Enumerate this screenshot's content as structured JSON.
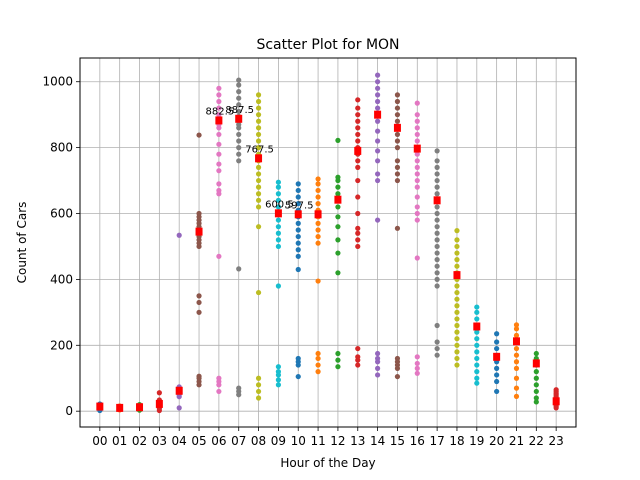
{
  "chart_data": {
    "type": "scatter",
    "title": "Scatter Plot for MON",
    "xlabel": "Hour of the Day",
    "ylabel": "Count of Cars",
    "categories": [
      "00",
      "01",
      "02",
      "03",
      "04",
      "05",
      "06",
      "07",
      "08",
      "09",
      "10",
      "11",
      "12",
      "13",
      "14",
      "15",
      "16",
      "17",
      "18",
      "19",
      "20",
      "21",
      "22",
      "23"
    ],
    "ylim": [
      -48,
      1072
    ],
    "yticks": [
      0,
      200,
      400,
      600,
      800,
      1000
    ],
    "grid": true,
    "colors": [
      "#1f77b4",
      "#ff7f0e",
      "#2ca02c",
      "#d62728",
      "#9467bd",
      "#8c564b",
      "#e377c2",
      "#7f7f7f",
      "#bcbd22",
      "#17becf"
    ],
    "median_color": "#ff0000",
    "series": [
      {
        "hour": "00",
        "points": [
          2,
          6,
          10,
          14,
          18,
          22
        ],
        "median": 14
      },
      {
        "hour": "01",
        "points": [
          4,
          8,
          12,
          16
        ],
        "median": 10
      },
      {
        "hour": "02",
        "points": [
          3,
          7,
          11,
          15,
          20
        ],
        "median": 12
      },
      {
        "hour": "03",
        "points": [
          2,
          8,
          14,
          20,
          28,
          34,
          56
        ],
        "median": 22
      },
      {
        "hour": "04",
        "points": [
          10,
          44,
          50,
          56,
          62,
          68,
          74,
          534
        ],
        "median": 62
      },
      {
        "hour": "05",
        "points": [
          80,
          90,
          100,
          106,
          300,
          330,
          350,
          500,
          510,
          520,
          530,
          540,
          550,
          560,
          570,
          580,
          590,
          600,
          838
        ],
        "median": 545
      },
      {
        "hour": "06",
        "points": [
          60,
          80,
          90,
          100,
          470,
          660,
          670,
          690,
          730,
          750,
          780,
          810,
          840,
          860,
          870,
          880,
          890,
          900,
          920,
          940,
          960,
          980
        ],
        "median": 882.5
      },
      {
        "hour": "07",
        "points": [
          50,
          60,
          70,
          432,
          760,
          780,
          800,
          820,
          840,
          860,
          870,
          880,
          887,
          895,
          910,
          930,
          950,
          970,
          990,
          1005
        ],
        "median": 887.5
      },
      {
        "hour": "08",
        "points": [
          40,
          60,
          80,
          100,
          360,
          560,
          620,
          640,
          660,
          680,
          700,
          720,
          740,
          760,
          780,
          800,
          820,
          840,
          860,
          880,
          900,
          920,
          940,
          960
        ],
        "median": 767.5
      },
      {
        "hour": "09",
        "points": [
          80,
          95,
          110,
          120,
          135,
          380,
          500,
          520,
          540,
          560,
          580,
          600,
          620,
          640,
          660,
          680,
          695
        ],
        "median": 600.5
      },
      {
        "hour": "10",
        "points": [
          105,
          140,
          150,
          160,
          430,
          470,
          490,
          510,
          530,
          550,
          570,
          590,
          610,
          630,
          650,
          670,
          690
        ],
        "median": 597.5
      },
      {
        "hour": "11",
        "points": [
          120,
          140,
          160,
          175,
          395,
          510,
          530,
          550,
          570,
          590,
          610,
          630,
          650,
          670,
          690,
          705
        ],
        "median": 597.5
      },
      {
        "hour": "12",
        "points": [
          135,
          155,
          175,
          420,
          480,
          520,
          560,
          590,
          620,
          640,
          660,
          680,
          700,
          710,
          822
        ],
        "median": 642
      },
      {
        "hour": "13",
        "points": [
          140,
          155,
          165,
          190,
          500,
          520,
          540,
          555,
          600,
          650,
          700,
          740,
          760,
          780,
          800,
          820,
          840,
          860,
          880,
          900,
          920,
          945
        ],
        "median": 790
      },
      {
        "hour": "14",
        "points": [
          110,
          130,
          150,
          160,
          175,
          580,
          700,
          720,
          760,
          790,
          820,
          850,
          880,
          900,
          920,
          940,
          960,
          980,
          1000,
          1020
        ],
        "median": 900
      },
      {
        "hour": "15",
        "points": [
          105,
          130,
          140,
          150,
          160,
          555,
          700,
          720,
          740,
          760,
          800,
          820,
          840,
          860,
          880,
          900,
          920,
          940,
          960
        ],
        "median": 860
      },
      {
        "hour": "16",
        "points": [
          115,
          130,
          145,
          165,
          465,
          580,
          600,
          620,
          650,
          680,
          700,
          720,
          740,
          760,
          780,
          800,
          820,
          840,
          860,
          880,
          900,
          935
        ],
        "median": 797
      },
      {
        "hour": "17",
        "points": [
          170,
          190,
          210,
          260,
          380,
          400,
          420,
          440,
          460,
          480,
          500,
          520,
          540,
          560,
          580,
          600,
          620,
          640,
          660,
          680,
          700,
          720,
          740,
          760,
          790
        ],
        "median": 640
      },
      {
        "hour": "18",
        "points": [
          140,
          160,
          180,
          200,
          220,
          240,
          260,
          280,
          300,
          320,
          340,
          360,
          380,
          400,
          420,
          440,
          460,
          480,
          500,
          520,
          548
        ],
        "median": 413
      },
      {
        "hour": "19",
        "points": [
          85,
          100,
          120,
          140,
          160,
          180,
          200,
          220,
          240,
          260,
          280,
          300,
          316
        ],
        "median": 257
      },
      {
        "hour": "20",
        "points": [
          60,
          90,
          110,
          130,
          150,
          170,
          190,
          210,
          235
        ],
        "median": 165
      },
      {
        "hour": "21",
        "points": [
          45,
          70,
          100,
          130,
          150,
          170,
          190,
          210,
          230,
          250,
          262
        ],
        "median": 212
      },
      {
        "hour": "22",
        "points": [
          28,
          40,
          60,
          80,
          100,
          120,
          140,
          160,
          175
        ],
        "median": 145
      },
      {
        "hour": "23",
        "points": [
          10,
          15,
          20,
          25,
          30,
          35,
          40,
          45,
          50,
          55,
          60,
          65
        ],
        "median": 30
      }
    ],
    "annotations": [
      {
        "hour": "06",
        "text": "882.5",
        "y": 882.5
      },
      {
        "hour": "07",
        "text": "887.5",
        "y": 887.5
      },
      {
        "hour": "08",
        "text": "767.5",
        "y": 767.5
      },
      {
        "hour": "09",
        "text": "600.5",
        "y": 600.5
      },
      {
        "hour": "10",
        "text": "597.5",
        "y": 597.5
      }
    ]
  }
}
